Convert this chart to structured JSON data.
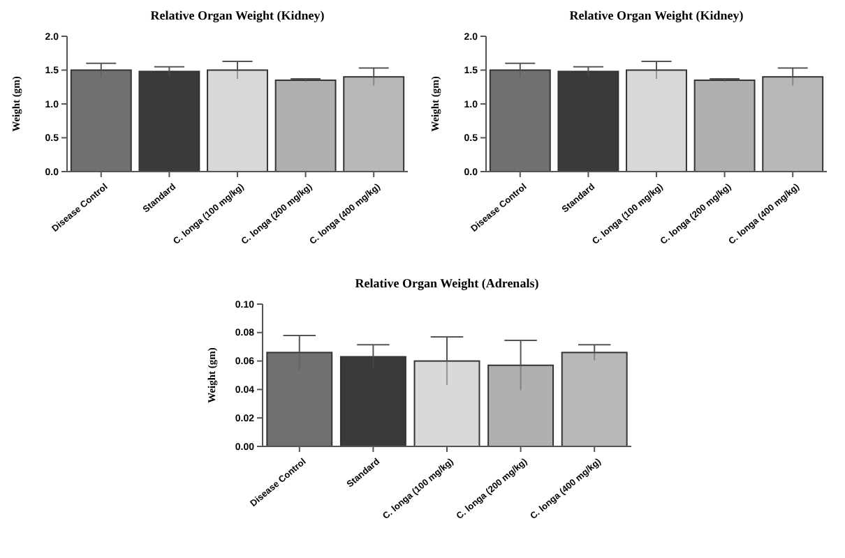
{
  "chart_data": [
    {
      "type": "bar",
      "title": "Relative Organ Weight (Kidney)",
      "ylabel": "Weight (gm)",
      "categories": [
        "Disease Control",
        "Standard",
        "C. longa (100 mg/kg)",
        "C. longa (200 mg/kg)",
        "C. longa (400 mg/kg)"
      ],
      "values": [
        1.5,
        1.48,
        1.5,
        1.35,
        1.4
      ],
      "errors": [
        0.1,
        0.07,
        0.13,
        0.02,
        0.13
      ],
      "colors": [
        "#707070",
        "#3a3a3a",
        "#d8d8d8",
        "#b0b0b0",
        "#b8b8b8"
      ],
      "ylim": [
        0,
        2.0
      ],
      "yticks": [
        {
          "value": 0,
          "label": "0.0"
        },
        {
          "value": 0.5,
          "label": "0.5"
        },
        {
          "value": 1,
          "label": "1.0"
        },
        {
          "value": 1.5,
          "label": "1.5"
        },
        {
          "value": 2,
          "label": "2.0"
        }
      ],
      "grid": false
    },
    {
      "type": "bar",
      "title": "Relative Organ Weight (Kidney)",
      "ylabel": "Weight (gm)",
      "categories": [
        "Disease Control",
        "Standard",
        "C. longa (100 mg/kg)",
        "C. longa (200 mg/kg)",
        "C. longa (400 mg/kg)"
      ],
      "values": [
        1.5,
        1.48,
        1.5,
        1.35,
        1.4
      ],
      "errors": [
        0.1,
        0.07,
        0.13,
        0.02,
        0.13
      ],
      "colors": [
        "#707070",
        "#3a3a3a",
        "#d8d8d8",
        "#b0b0b0",
        "#b8b8b8"
      ],
      "ylim": [
        0,
        2.0
      ],
      "yticks": [
        {
          "value": 0,
          "label": "0.0"
        },
        {
          "value": 0.5,
          "label": "0.5"
        },
        {
          "value": 1,
          "label": "1.0"
        },
        {
          "value": 1.5,
          "label": "1.5"
        },
        {
          "value": 2,
          "label": "2.0"
        }
      ],
      "grid": false
    },
    {
      "type": "bar",
      "title": "Relative Organ Weight (Adrenals)",
      "ylabel": "Weight (gm)",
      "categories": [
        "Disease Control",
        "Standard",
        "C. longa (100 mg/kg)",
        "C. longa (200 mg/kg)",
        "C. longa (400 mg/kg)"
      ],
      "values": [
        0.066,
        0.063,
        0.06,
        0.057,
        0.066
      ],
      "errors": [
        0.012,
        0.0085,
        0.017,
        0.0175,
        0.0055
      ],
      "colors": [
        "#707070",
        "#3a3a3a",
        "#d8d8d8",
        "#b0b0b0",
        "#b8b8b8"
      ],
      "ylim": [
        0,
        0.1
      ],
      "yticks": [
        {
          "value": 0,
          "label": "0.00"
        },
        {
          "value": 0.02,
          "label": "0.02"
        },
        {
          "value": 0.04,
          "label": "0.04"
        },
        {
          "value": 0.06,
          "label": "0.06"
        },
        {
          "value": 0.08,
          "label": "0.08"
        },
        {
          "value": 0.1,
          "label": "0.10"
        }
      ],
      "grid": false
    }
  ]
}
